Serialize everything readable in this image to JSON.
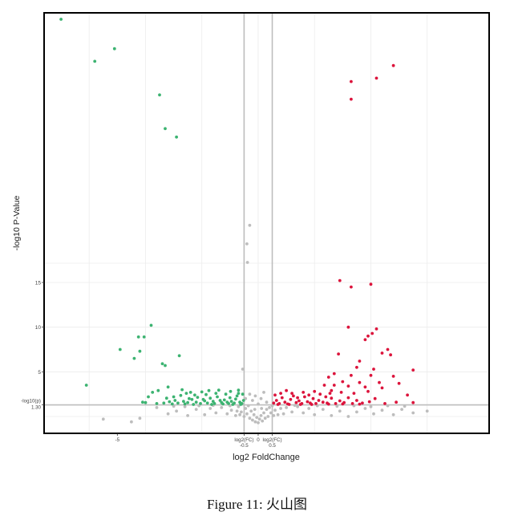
{
  "chart_data": {
    "type": "scatter",
    "title": "",
    "xlabel": "log2 FoldChange",
    "ylabel": "-log10 P-Value",
    "xlim": [
      -7.6,
      8.2
    ],
    "x_ticks": [
      {
        "value": -5,
        "label": "-5"
      },
      {
        "value": -0.5,
        "label": "log2(FC)",
        "sublabel": "-0.5"
      },
      {
        "value": 0,
        "label": "0"
      },
      {
        "value": 0.5,
        "label": "log2(FC)",
        "sublabel": "0.5"
      }
    ],
    "y_ticks": [
      {
        "value": 1.3,
        "label": "-log10(p)",
        "sublabel": "1.30"
      },
      {
        "value": 5,
        "label": "5"
      },
      {
        "value": 10,
        "label": "10"
      },
      {
        "value": 15,
        "label": "15"
      }
    ],
    "thresholds": {
      "fc_left": -0.5,
      "fc_right": 0.5,
      "p": 1.3
    },
    "colors": {
      "down": "#3cb371",
      "up": "#dc143c",
      "ns": "#bdbdbd",
      "threshold_line": "#bdbdbd",
      "frame": "#000000"
    },
    "series": [
      {
        "group": "down",
        "points": [
          [
            -7.0,
            46
          ],
          [
            -5.8,
            41
          ],
          [
            -5.1,
            42.5
          ],
          [
            -3.5,
            37
          ],
          [
            -3.3,
            33
          ],
          [
            -2.9,
            32
          ],
          [
            -6.1,
            3.5
          ],
          [
            -4.9,
            7.5
          ],
          [
            -4.4,
            6.5
          ],
          [
            -4.25,
            8.9
          ],
          [
            -4.2,
            7.3
          ],
          [
            -4.05,
            8.9
          ],
          [
            -3.8,
            10.2
          ],
          [
            -3.4,
            5.9
          ],
          [
            -3.3,
            5.7
          ],
          [
            -3.2,
            3.3
          ],
          [
            -2.8,
            6.8
          ],
          [
            -3.9,
            2.2
          ],
          [
            -4.1,
            1.6
          ],
          [
            -3.55,
            2.9
          ],
          [
            -3.75,
            2.7
          ],
          [
            -3.0,
            2.2
          ],
          [
            -2.7,
            3.0
          ],
          [
            -2.55,
            2.6
          ],
          [
            -2.4,
            2.7
          ],
          [
            -2.25,
            2.4
          ],
          [
            -1.95,
            1.9
          ],
          [
            -1.6,
            1.7
          ],
          [
            -1.35,
            1.8
          ],
          [
            -1.1,
            1.6
          ],
          [
            -4.0,
            1.55
          ],
          [
            -3.6,
            1.45
          ],
          [
            -3.35,
            1.5
          ],
          [
            -3.15,
            1.65
          ],
          [
            -2.95,
            1.8
          ],
          [
            -2.85,
            1.5
          ],
          [
            -2.65,
            1.7
          ],
          [
            -2.5,
            1.55
          ],
          [
            -2.35,
            1.9
          ],
          [
            -2.2,
            1.6
          ],
          [
            -2.05,
            1.45
          ],
          [
            -1.9,
            1.75
          ],
          [
            -1.8,
            1.5
          ],
          [
            -1.7,
            2.05
          ],
          [
            -1.55,
            1.45
          ],
          [
            -1.45,
            2.2
          ],
          [
            -1.3,
            1.55
          ],
          [
            -1.2,
            1.85
          ],
          [
            -1.05,
            1.45
          ],
          [
            -0.95,
            1.7
          ],
          [
            -0.85,
            1.5
          ],
          [
            -0.75,
            2.3
          ],
          [
            -0.65,
            1.6
          ],
          [
            -0.58,
            1.45
          ],
          [
            -0.52,
            1.8
          ],
          [
            -3.25,
            2.05
          ],
          [
            -3.05,
            1.4
          ],
          [
            -2.75,
            2.35
          ],
          [
            -2.15,
            2.15
          ],
          [
            -1.85,
            2.45
          ],
          [
            -1.65,
            1.35
          ],
          [
            -1.5,
            2.6
          ],
          [
            -1.25,
            1.4
          ],
          [
            -1.15,
            2.5
          ],
          [
            -1.0,
            2.1
          ],
          [
            -0.9,
            1.35
          ],
          [
            -0.8,
            1.95
          ],
          [
            -0.7,
            2.6
          ],
          [
            -0.62,
            1.35
          ],
          [
            -0.55,
            2.5
          ],
          [
            -2.6,
            1.4
          ],
          [
            -2.45,
            2.0
          ],
          [
            -2.3,
            1.35
          ],
          [
            -2.0,
            2.75
          ],
          [
            -1.75,
            2.9
          ],
          [
            -1.4,
            2.95
          ],
          [
            -0.98,
            2.8
          ],
          [
            -0.7,
            2.95
          ]
        ]
      },
      {
        "group": "up",
        "points": [
          [
            4.2,
            39
          ],
          [
            4.8,
            40.5
          ],
          [
            3.3,
            38.6
          ],
          [
            3.3,
            36.5
          ],
          [
            2.9,
            15.2
          ],
          [
            3.3,
            14.5
          ],
          [
            4.0,
            14.8
          ],
          [
            4.2,
            9.8
          ],
          [
            4.05,
            9.3
          ],
          [
            3.9,
            9.0
          ],
          [
            3.8,
            8.6
          ],
          [
            3.2,
            10.0
          ],
          [
            4.6,
            7.5
          ],
          [
            4.4,
            7.1
          ],
          [
            4.7,
            6.9
          ],
          [
            3.6,
            6.2
          ],
          [
            2.85,
            7.0
          ],
          [
            3.5,
            5.5
          ],
          [
            4.1,
            5.3
          ],
          [
            5.5,
            5.2
          ],
          [
            2.7,
            4.8
          ],
          [
            3.3,
            4.6
          ],
          [
            4.0,
            4.6
          ],
          [
            4.8,
            4.5
          ],
          [
            2.5,
            4.4
          ],
          [
            3.0,
            3.9
          ],
          [
            3.6,
            3.8
          ],
          [
            4.3,
            3.8
          ],
          [
            5.0,
            3.7
          ],
          [
            2.35,
            3.5
          ],
          [
            2.7,
            3.5
          ],
          [
            3.2,
            3.4
          ],
          [
            3.8,
            3.3
          ],
          [
            4.4,
            3.2
          ],
          [
            2.6,
            2.9
          ],
          [
            2.95,
            2.7
          ],
          [
            3.4,
            2.6
          ],
          [
            3.9,
            2.8
          ],
          [
            5.3,
            2.4
          ],
          [
            0.55,
            1.5
          ],
          [
            0.65,
            1.8
          ],
          [
            0.75,
            1.45
          ],
          [
            0.85,
            2.1
          ],
          [
            0.95,
            1.6
          ],
          [
            1.05,
            1.4
          ],
          [
            1.15,
            1.9
          ],
          [
            1.25,
            2.3
          ],
          [
            1.35,
            1.55
          ],
          [
            1.45,
            1.75
          ],
          [
            1.55,
            1.45
          ],
          [
            1.65,
            2.2
          ],
          [
            1.75,
            1.65
          ],
          [
            1.85,
            1.5
          ],
          [
            1.95,
            2.0
          ],
          [
            2.05,
            1.45
          ],
          [
            2.15,
            1.8
          ],
          [
            2.3,
            1.6
          ],
          [
            2.45,
            1.5
          ],
          [
            2.6,
            2.05
          ],
          [
            2.75,
            1.45
          ],
          [
            2.9,
            1.75
          ],
          [
            3.05,
            1.55
          ],
          [
            3.2,
            2.1
          ],
          [
            3.35,
            1.45
          ],
          [
            3.5,
            1.8
          ],
          [
            3.7,
            1.5
          ],
          [
            3.95,
            1.65
          ],
          [
            4.15,
            2.0
          ],
          [
            4.5,
            1.45
          ],
          [
            4.9,
            1.6
          ],
          [
            5.5,
            1.55
          ],
          [
            0.6,
            2.4
          ],
          [
            0.8,
            2.6
          ],
          [
            1.0,
            2.9
          ],
          [
            1.2,
            2.6
          ],
          [
            1.4,
            2.1
          ],
          [
            1.6,
            2.7
          ],
          [
            1.8,
            2.4
          ],
          [
            2.0,
            2.8
          ],
          [
            2.2,
            2.5
          ],
          [
            2.4,
            2.2
          ],
          [
            2.55,
            2.6
          ],
          [
            0.7,
            1.35
          ],
          [
            1.1,
            1.35
          ],
          [
            1.5,
            1.35
          ],
          [
            1.9,
            1.35
          ],
          [
            2.5,
            1.38
          ],
          [
            3.0,
            1.4
          ],
          [
            3.6,
            1.38
          ]
        ]
      },
      {
        "group": "ns",
        "points": [
          [
            -0.3,
            21.5
          ],
          [
            -0.4,
            19.3
          ],
          [
            -0.38,
            17.1
          ],
          [
            -0.55,
            5.3
          ],
          [
            -5.5,
            -0.3
          ],
          [
            -4.5,
            -0.6
          ],
          [
            -4.2,
            -0.2
          ],
          [
            -3.2,
            0.3
          ],
          [
            -2.9,
            0.6
          ],
          [
            -2.5,
            0.1
          ],
          [
            -2.2,
            0.8
          ],
          [
            -1.9,
            0.2
          ],
          [
            -1.7,
            0.9
          ],
          [
            -1.5,
            0.4
          ],
          [
            -1.3,
            1.0
          ],
          [
            -1.1,
            0.3
          ],
          [
            -0.95,
            0.7
          ],
          [
            -0.8,
            0.1
          ],
          [
            -0.7,
            1.1
          ],
          [
            -0.6,
            0.5
          ],
          [
            -0.5,
            0.0
          ],
          [
            -0.45,
            0.9
          ],
          [
            -0.4,
            0.3
          ],
          [
            -0.35,
            1.2
          ],
          [
            -0.3,
            -0.2
          ],
          [
            -0.25,
            0.6
          ],
          [
            -0.2,
            -0.4
          ],
          [
            -0.15,
            0.2
          ],
          [
            -0.1,
            -0.6
          ],
          [
            -0.05,
            -0.1
          ],
          [
            0.0,
            -0.7
          ],
          [
            0.05,
            -0.3
          ],
          [
            0.1,
            0.1
          ],
          [
            0.15,
            -0.5
          ],
          [
            0.2,
            0.4
          ],
          [
            0.25,
            -0.2
          ],
          [
            0.3,
            0.8
          ],
          [
            0.35,
            0.0
          ],
          [
            0.4,
            1.0
          ],
          [
            0.45,
            0.4
          ],
          [
            0.5,
            1.2
          ],
          [
            0.55,
            0.1
          ],
          [
            0.6,
            0.7
          ],
          [
            0.7,
            0.2
          ],
          [
            0.8,
            0.9
          ],
          [
            0.9,
            0.3
          ],
          [
            1.0,
            1.0
          ],
          [
            1.2,
            0.5
          ],
          [
            1.4,
            1.1
          ],
          [
            1.6,
            0.4
          ],
          [
            1.8,
            0.9
          ],
          [
            2.0,
            0.2
          ],
          [
            2.3,
            0.8
          ],
          [
            2.6,
            0.1
          ],
          [
            2.9,
            0.6
          ],
          [
            3.2,
            0.0
          ],
          [
            3.5,
            0.5
          ],
          [
            3.8,
            0.9
          ],
          [
            4.1,
            0.3
          ],
          [
            4.4,
            0.7
          ],
          [
            4.8,
            0.2
          ],
          [
            5.1,
            0.8
          ],
          [
            5.5,
            0.4
          ],
          [
            6.0,
            0.6
          ],
          [
            -3.6,
            1.0
          ],
          [
            -3.0,
            1.15
          ],
          [
            -2.6,
            1.1
          ],
          [
            -2.1,
            1.2
          ],
          [
            -1.6,
            1.25
          ],
          [
            -1.0,
            1.2
          ],
          [
            -0.75,
            0.6
          ],
          [
            -0.65,
            0.2
          ],
          [
            -0.2,
            1.8
          ],
          [
            -0.1,
            2.3
          ],
          [
            0.1,
            2.0
          ],
          [
            0.2,
            2.7
          ],
          [
            -0.3,
            2.5
          ],
          [
            0.3,
            1.6
          ],
          [
            -0.45,
            2.0
          ],
          [
            0.0,
            1.4
          ],
          [
            0.12,
            0.9
          ],
          [
            -0.12,
            0.8
          ],
          [
            1.3,
            1.25
          ],
          [
            2.1,
            1.2
          ],
          [
            2.8,
            1.15
          ],
          [
            3.4,
            1.2
          ],
          [
            4.0,
            1.1
          ],
          [
            4.6,
            1.2
          ],
          [
            5.2,
            1.15
          ]
        ]
      }
    ]
  },
  "caption": {
    "label": "Figure 11:",
    "text": "火山图"
  }
}
